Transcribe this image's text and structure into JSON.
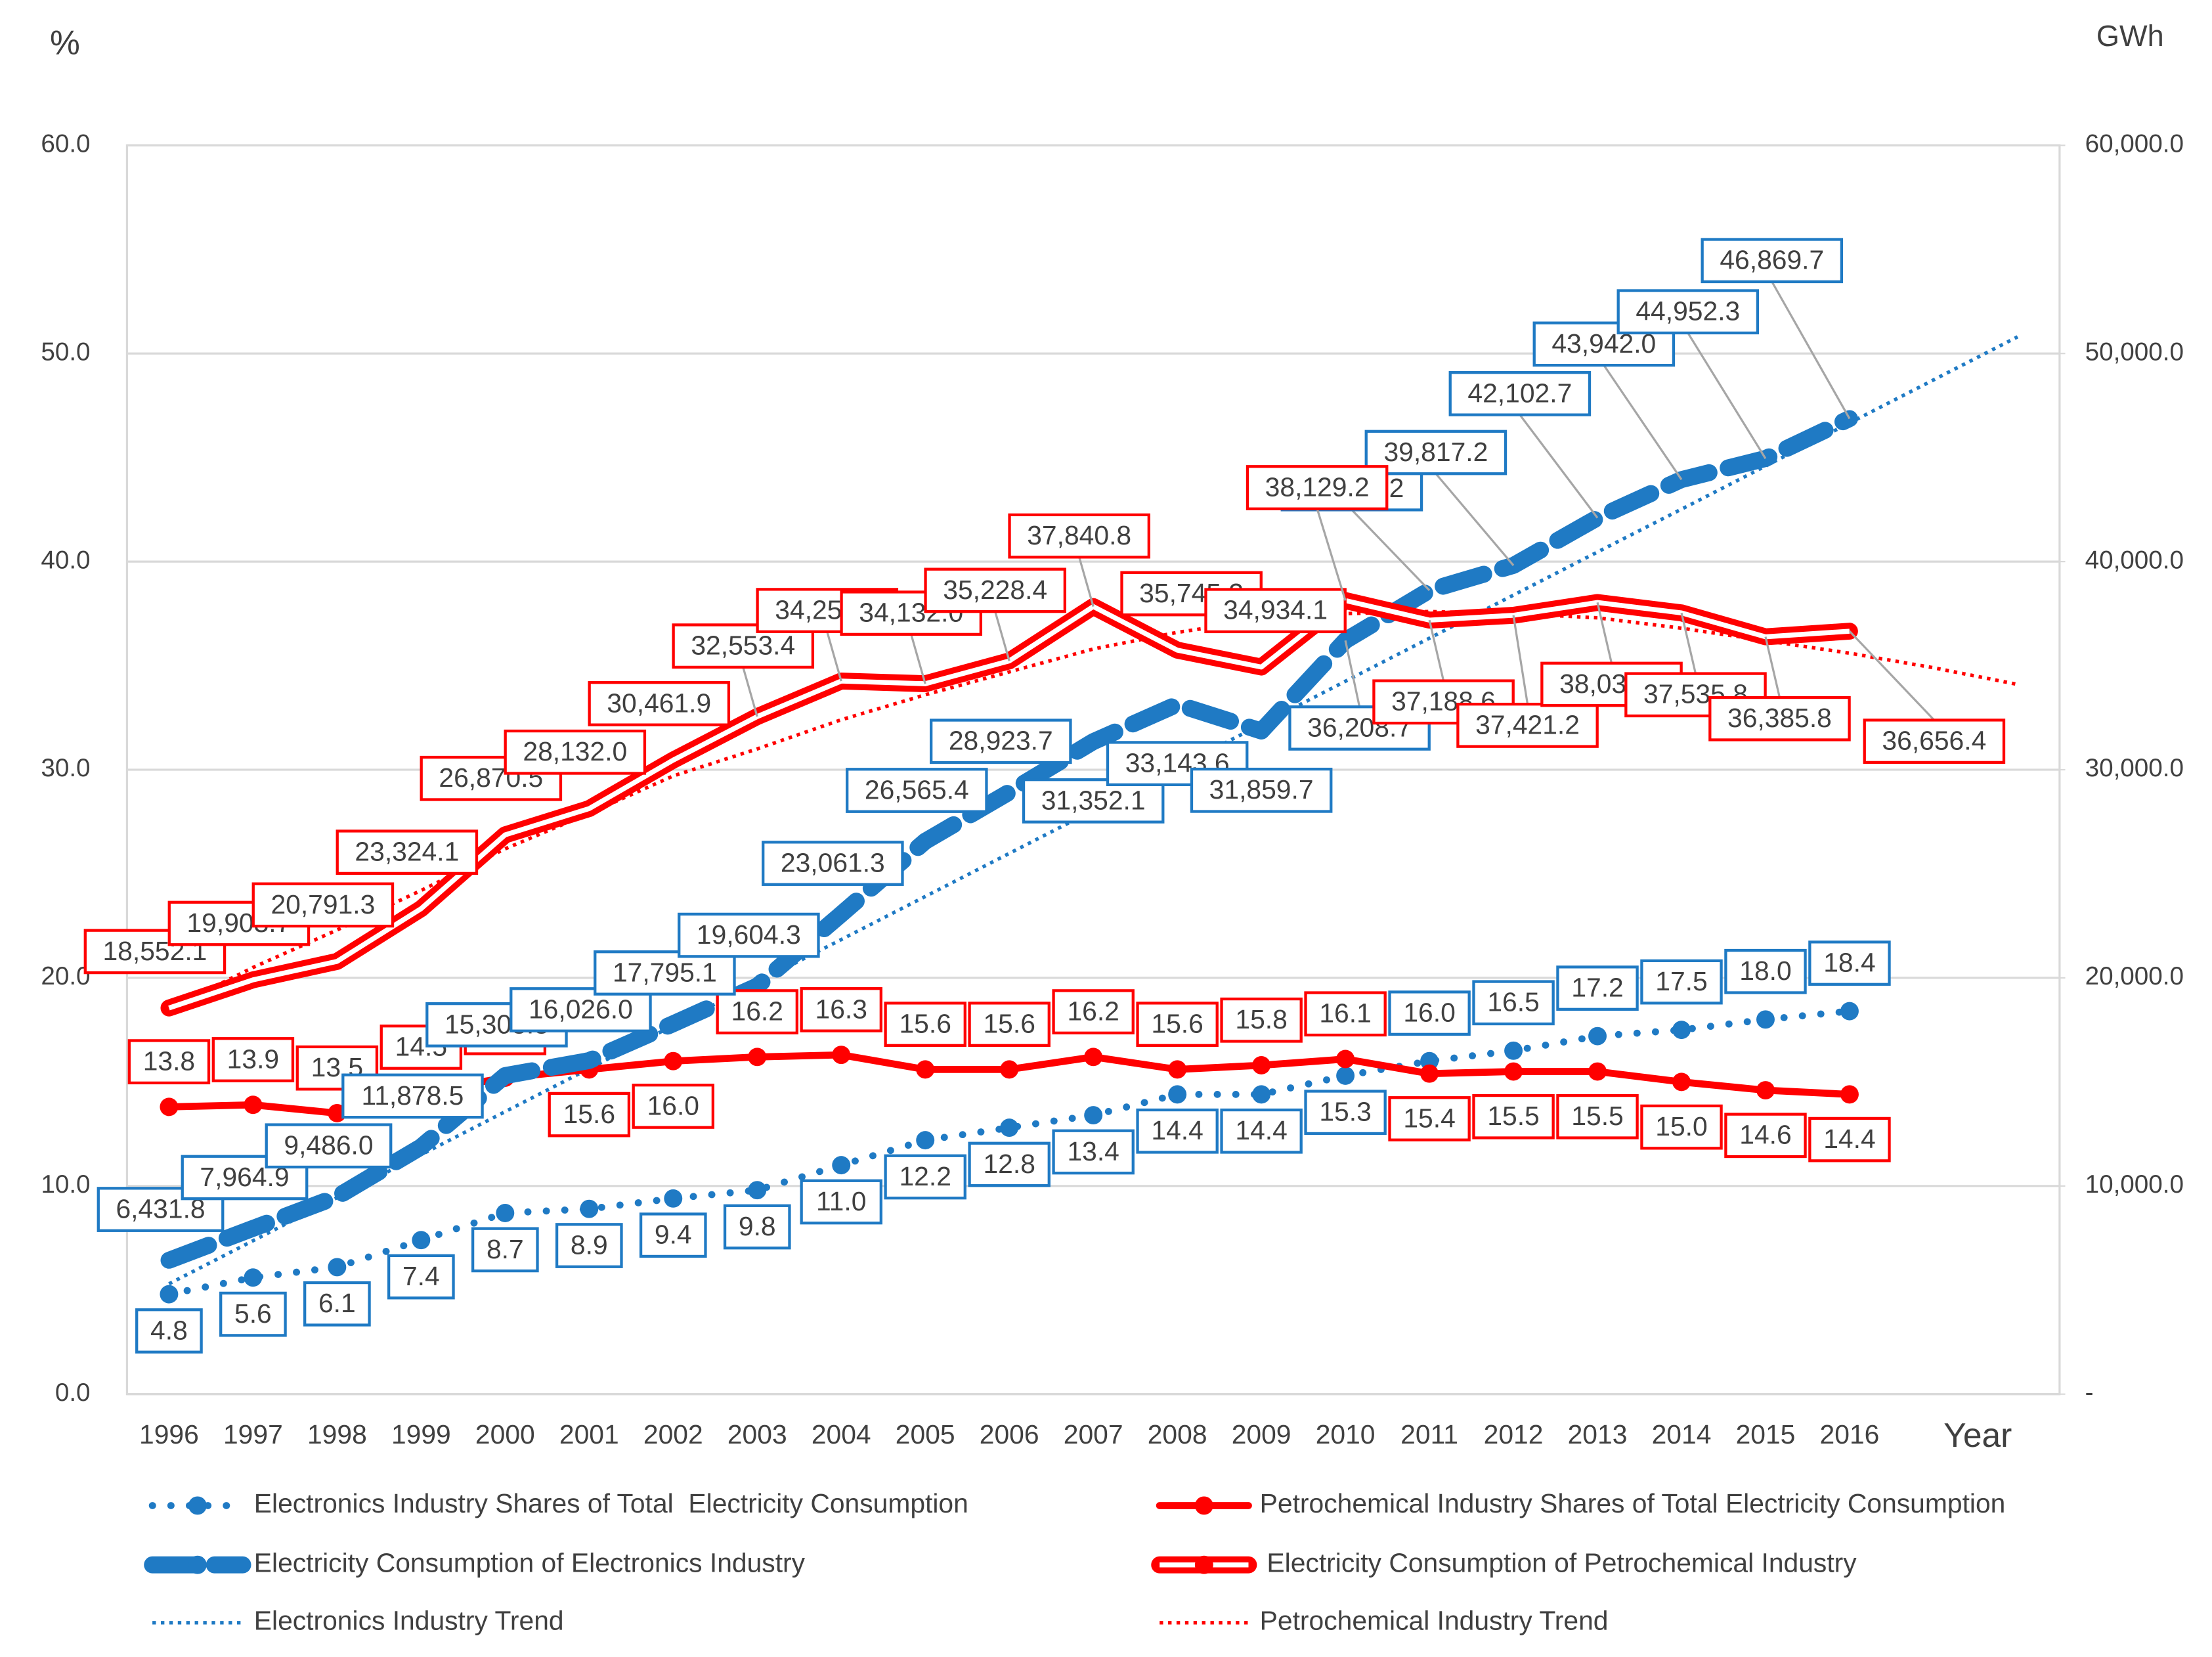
{
  "chart_data": {
    "type": "line",
    "y_axis_title": "%",
    "y2_axis_title": "GWh",
    "x_axis_title": "Year",
    "categories": [
      "1996",
      "1997",
      "1998",
      "1999",
      "2000",
      "2001",
      "2002",
      "2003",
      "2004",
      "2005",
      "2006",
      "2007",
      "2008",
      "2009",
      "2010",
      "2011",
      "2012",
      "2013",
      "2014",
      "2015",
      "2016",
      null,
      null
    ],
    "ylim": [
      0,
      60
    ],
    "yticks": [
      {
        "value": 0,
        "label": "0.0"
      },
      {
        "value": 10,
        "label": "10.0"
      },
      {
        "value": 20,
        "label": "20.0"
      },
      {
        "value": 30,
        "label": "30.0"
      },
      {
        "value": 40,
        "label": "40.0"
      },
      {
        "value": 50,
        "label": "50.0"
      },
      {
        "value": 60,
        "label": "60.0"
      }
    ],
    "y2lim": [
      0,
      60000
    ],
    "y2ticks": [
      {
        "value": 0,
        "label": "-"
      },
      {
        "value": 10000,
        "label": "10,000.0"
      },
      {
        "value": 20000,
        "label": "20,000.0"
      },
      {
        "value": 30000,
        "label": "30,000.0"
      },
      {
        "value": 40000,
        "label": "40,000.0"
      },
      {
        "value": 50000,
        "label": "50,000.0"
      },
      {
        "value": 60000,
        "label": "60,000.0"
      }
    ],
    "grid": true,
    "legend": "bottom",
    "series": [
      {
        "name": "Electronics Industry Shares of Total  Electricity Consumption",
        "color": "#1f7ac4",
        "line_style": "dotted",
        "markers": true,
        "data_labels": true,
        "values": [
          4.8,
          5.6,
          6.1,
          7.4,
          8.7,
          8.9,
          9.4,
          9.8,
          11.0,
          12.2,
          12.8,
          13.4,
          14.4,
          14.4,
          15.3,
          16.0,
          16.5,
          17.2,
          17.5,
          18.0,
          18.4,
          null,
          null
        ],
        "value_labels": [
          "4.8",
          "5.6",
          "6.1",
          "7.4",
          "8.7",
          "8.9",
          "9.4",
          "9.8",
          "11.0",
          "12.2",
          "12.8",
          "13.4",
          "14.4",
          "14.4",
          "15.3",
          "16.0",
          "16.5",
          "17.2",
          "17.5",
          "18.0",
          "18.4",
          null,
          null
        ]
      },
      {
        "name": "Petrochemical Industry Shares of Total Electricity Consumption",
        "color": "#ff0000",
        "line_style": "solid",
        "markers": true,
        "data_labels": true,
        "values": [
          13.8,
          13.9,
          13.5,
          14.5,
          15.2,
          15.6,
          16.0,
          16.2,
          16.3,
          15.6,
          15.6,
          16.2,
          15.6,
          15.8,
          16.1,
          15.4,
          15.5,
          15.5,
          15.0,
          14.6,
          14.4,
          null,
          null
        ],
        "value_labels": [
          "13.8",
          "13.9",
          "13.5",
          "14.5",
          "15.2",
          "15.6",
          "16.0",
          "16.2",
          "16.3",
          "15.6",
          "15.6",
          "16.2",
          "15.6",
          "15.8",
          "16.1",
          "15.4",
          "15.5",
          "15.5",
          "15.0",
          "14.6",
          "14.4",
          null,
          null
        ]
      },
      {
        "name": "Electricity Consumption of Electronics Industry",
        "color": "#1f7ac4",
        "line_style": "dashed",
        "markers": false,
        "data_labels": true,
        "axis": "y2",
        "values": [
          6431.8,
          7964.9,
          9486.0,
          11878.5,
          15303.8,
          16026.0,
          17795.1,
          19604.3,
          23061.3,
          26565.4,
          28923.7,
          31352.1,
          33143.6,
          31859.7,
          36208.7,
          38619.2,
          39817.2,
          42102.7,
          43942.0,
          44952.3,
          46869.7,
          null,
          null
        ],
        "value_labels": [
          "6,431.8",
          "7,964.9",
          "9,486.0",
          "11,878.5",
          "15,303.8",
          "16,026.0",
          "17,795.1",
          "19,604.3",
          "23,061.3",
          "26,565.4",
          "28,923.7",
          "31,352.1",
          "33,143.6",
          "31,859.7",
          "36,208.7",
          "38,619.2",
          "39,817.2",
          "42,102.7",
          "43,942.0",
          "44,952.3",
          "46,869.7",
          null,
          null
        ]
      },
      {
        "name": "Electricity Consumption of Petrochemical Industry",
        "color": "#ff0000",
        "line_style": "double",
        "markers": false,
        "data_labels": true,
        "axis": "y2",
        "values": [
          18552.1,
          19903.7,
          20791.3,
          23324.1,
          26870.5,
          28132.0,
          30461.9,
          32553.4,
          34259.6,
          34132.0,
          35228.4,
          37840.8,
          35745.3,
          34934.1,
          38129.2,
          37188.6,
          37421.2,
          38035.0,
          37535.8,
          36385.8,
          36656.4,
          null,
          null
        ],
        "value_labels": [
          "18,552.1",
          "19,903.7",
          "20,791.3",
          "23,324.1",
          "26,870.5",
          "28,132.0",
          "30,461.9",
          "32,553.4",
          "34,259.6",
          "34,132.0",
          "35,228.4",
          "37,840.8",
          "35,745.3",
          "34,934.1",
          "38,129.2",
          "37,188.6",
          "37,421.2",
          "38,035.0",
          "37,535.8",
          "36,385.8",
          "36,656.4",
          null,
          null
        ]
      },
      {
        "name": "Electronics Industry Trend",
        "color": "#1f7ac4",
        "line_style": "trend",
        "markers": false,
        "data_labels": false,
        "axis": "y2",
        "values": [
          5300,
          7370,
          9440,
          11500,
          13570,
          15640,
          17710,
          19780,
          21840,
          23910,
          25980,
          28050,
          30120,
          32180,
          34250,
          36320,
          38390,
          40460,
          42520,
          44590,
          46660,
          48730,
          50800
        ]
      },
      {
        "name": "Petrochemical Industry Trend",
        "color": "#ff0000",
        "line_style": "trend",
        "markers": false,
        "data_labels": false,
        "axis": "y2",
        "values": [
          18500,
          20500,
          22300,
          24200,
          26200,
          27900,
          29700,
          31000,
          32400,
          33600,
          34700,
          35800,
          36600,
          37200,
          37500,
          37600,
          37500,
          37300,
          36800,
          36200,
          35600,
          34900,
          34100
        ]
      }
    ]
  }
}
